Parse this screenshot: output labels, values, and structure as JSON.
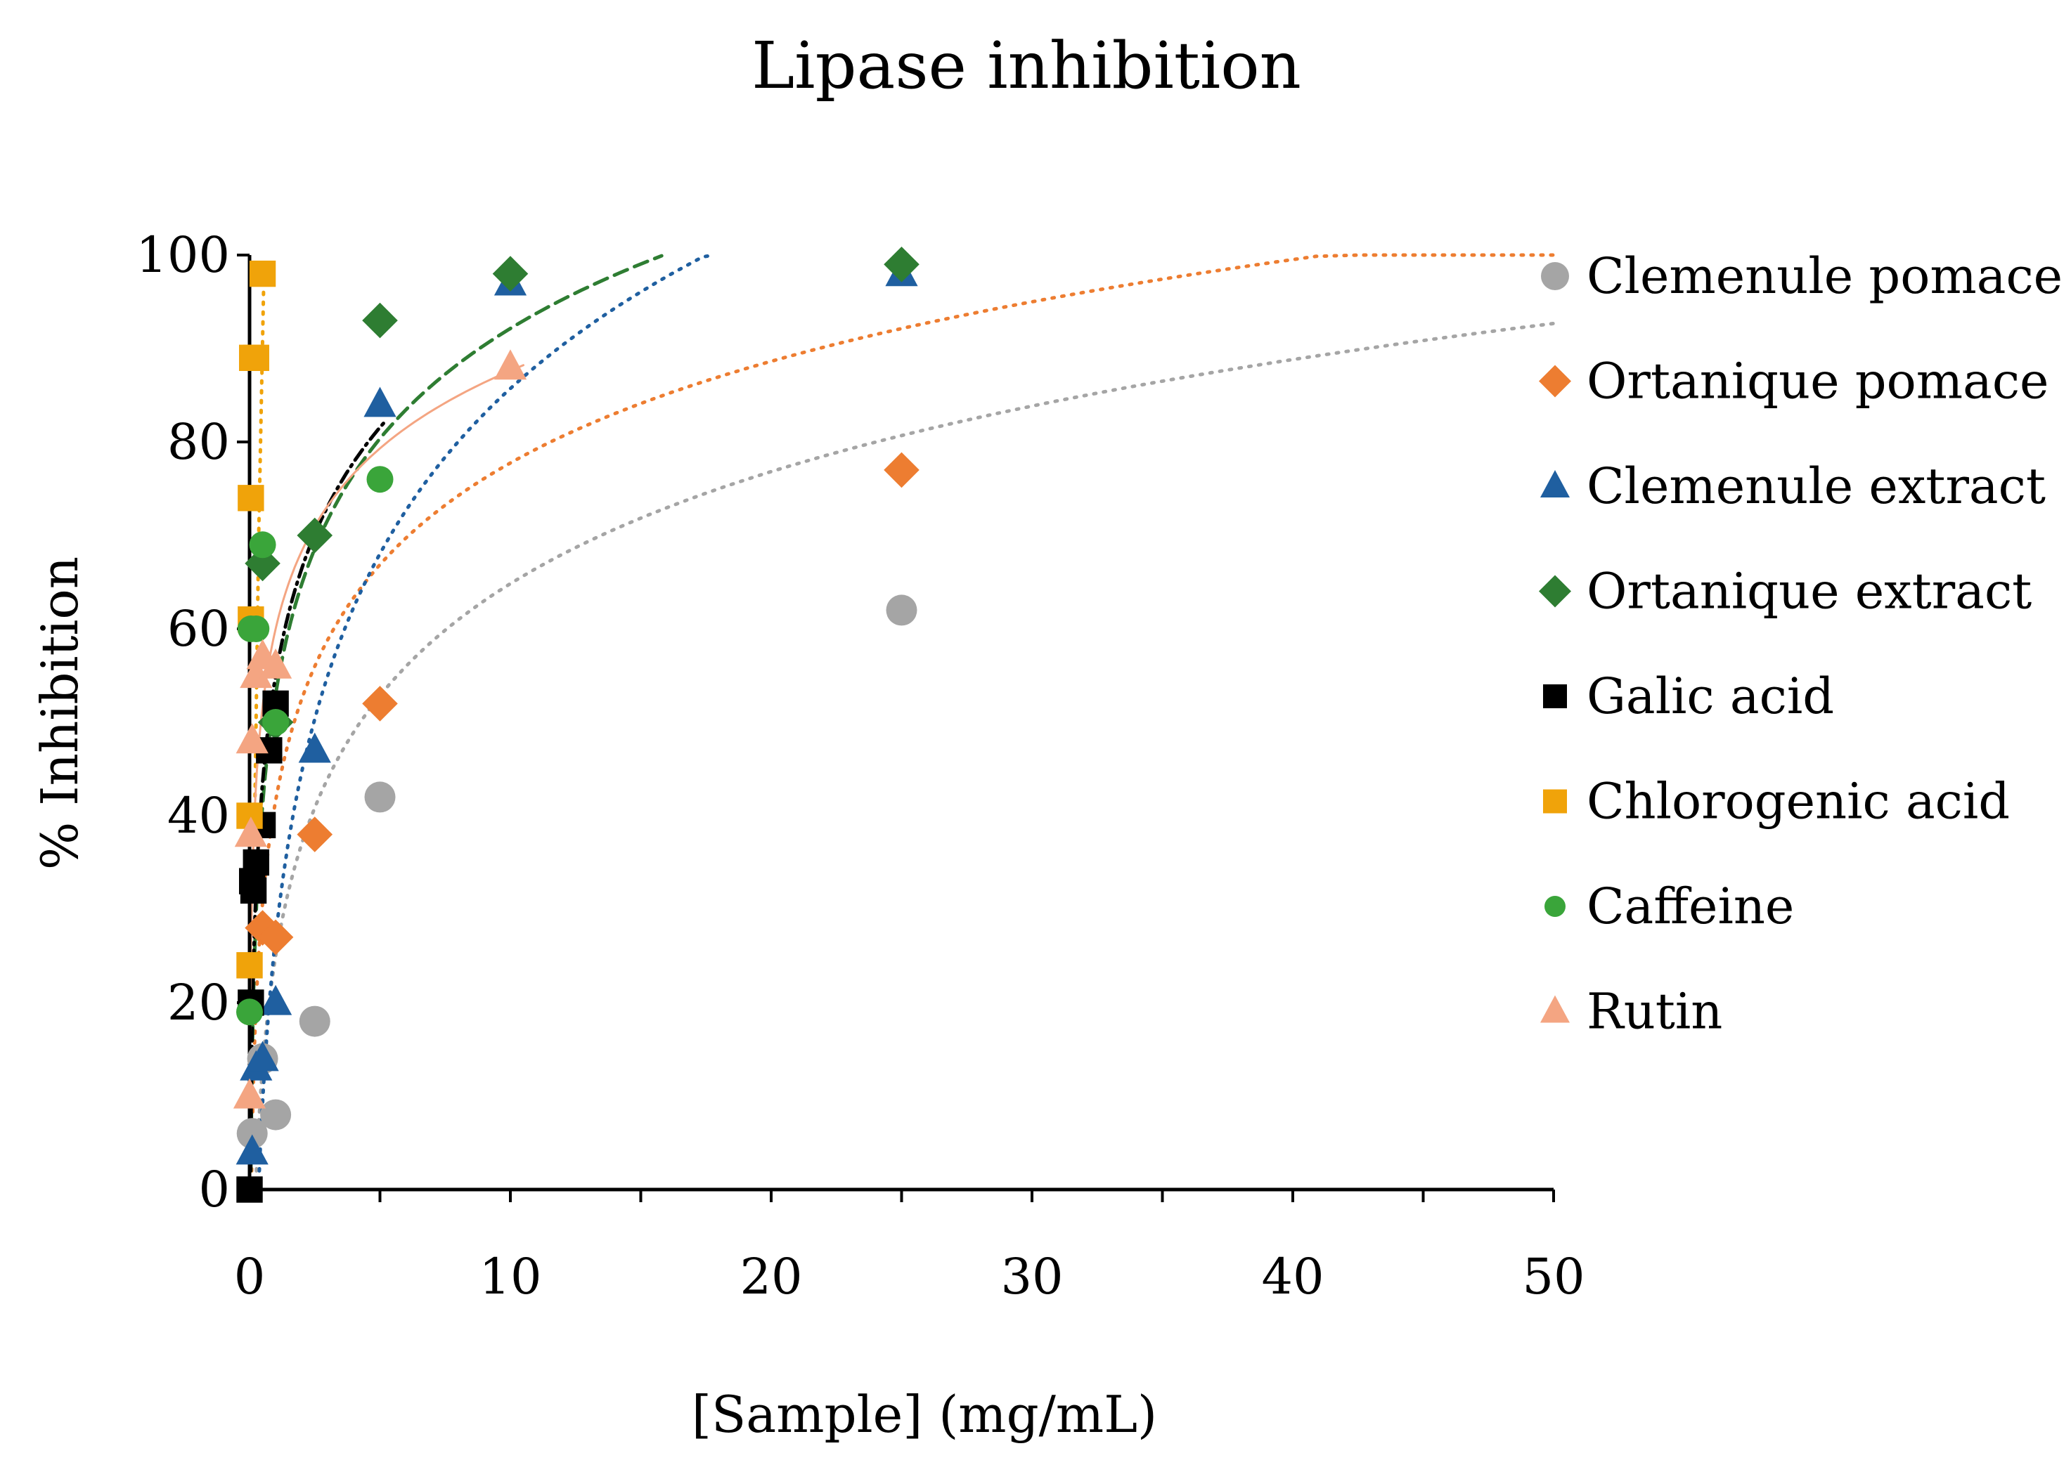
{
  "chart_data": {
    "type": "scatter",
    "title": "Lipase inhibition",
    "xlabel": "[Sample] (mg/mL)",
    "ylabel": "% Inhibition",
    "xlim": [
      0,
      50
    ],
    "ylim": [
      0,
      100
    ],
    "xticks": [
      0,
      10,
      20,
      30,
      40,
      50
    ],
    "yticks": [
      0,
      20,
      40,
      60,
      80,
      100
    ],
    "grid": false,
    "legend_position": "right",
    "series": [
      {
        "name": "Clemenule pomace",
        "color": "#a5a5a5",
        "marker": "circle",
        "x": [
          0.1,
          0.5,
          1.0,
          2.5,
          5.0,
          25.0
        ],
        "y": [
          6,
          14,
          8,
          18,
          42,
          62
        ],
        "trend": {
          "kind": "log",
          "a": 25.0,
          "b": 17.3,
          "x_end": 50,
          "dash": "dotted"
        }
      },
      {
        "name": "Ortanique pomace",
        "color": "#ed7d31",
        "marker": "diamond",
        "x": [
          0.5,
          1.0,
          2.5,
          5.0,
          25.0
        ],
        "y": [
          28,
          27,
          38,
          52,
          77
        ],
        "trend": {
          "kind": "log",
          "a": 41.6,
          "b": 15.7,
          "x_end": 50,
          "dash": "dotted"
        }
      },
      {
        "name": "Clemenule extract",
        "color": "#1f5fa0",
        "marker": "triangle",
        "x": [
          0.1,
          0.25,
          0.5,
          1.0,
          2.5,
          5.0,
          10.0,
          25.0
        ],
        "y": [
          4,
          13,
          14,
          20,
          47,
          84,
          97,
          98
        ],
        "trend": {
          "kind": "log",
          "a": 27.0,
          "b": 25.5,
          "x_end": 17.8,
          "dash": "dotted"
        }
      },
      {
        "name": "Ortanique extract",
        "color": "#2e7d32",
        "marker": "diamond",
        "x": [
          0.5,
          1.0,
          2.5,
          5.0,
          10.0,
          25.0
        ],
        "y": [
          67,
          50,
          70,
          93,
          98,
          99
        ],
        "trend": {
          "kind": "log",
          "a": 53.0,
          "b": 17.0,
          "x_end": 15.8,
          "dash": "dashed"
        }
      },
      {
        "name": "Galic acid",
        "color": "#000000",
        "marker": "square",
        "x": [
          0.0,
          0.05,
          0.1,
          0.15,
          0.25,
          0.5,
          0.75,
          1.0
        ],
        "y": [
          0,
          20,
          33,
          32,
          35,
          39,
          47,
          52
        ],
        "trend": {
          "kind": "log",
          "a": 55.0,
          "b": 16.5,
          "x_end": 5.2,
          "dash": "dashdot"
        }
      },
      {
        "name": "Chlorogenic acid",
        "color": "#f0a30a",
        "marker": "square",
        "x": [
          0.0,
          0.0,
          0.05,
          0.05,
          0.1,
          0.25,
          0.5
        ],
        "y": [
          40,
          24,
          61,
          74,
          89,
          89,
          98
        ],
        "trend": {
          "kind": "line",
          "points": [
            [
              0.2,
              40
            ],
            [
              0.35,
              70
            ],
            [
              0.55,
              98
            ]
          ],
          "dash": "dotted"
        }
      },
      {
        "name": "Caffeine",
        "color": "#3aa53a",
        "marker": "circle",
        "x": [
          0.0,
          0.05,
          0.25,
          0.5,
          1.0,
          5.0
        ],
        "y": [
          19,
          60,
          60,
          69,
          50,
          76
        ],
        "trend": {
          "kind": "none"
        }
      },
      {
        "name": "Rutin",
        "color": "#f4a582",
        "marker": "triangle",
        "x": [
          0.0,
          0.05,
          0.1,
          0.25,
          0.5,
          1.0,
          10.0
        ],
        "y": [
          10,
          38,
          48,
          55,
          57,
          56,
          88
        ],
        "trend": {
          "kind": "log",
          "a": 60.0,
          "b": 12.0,
          "x_end": 10.5,
          "dash": "solid"
        }
      }
    ]
  }
}
